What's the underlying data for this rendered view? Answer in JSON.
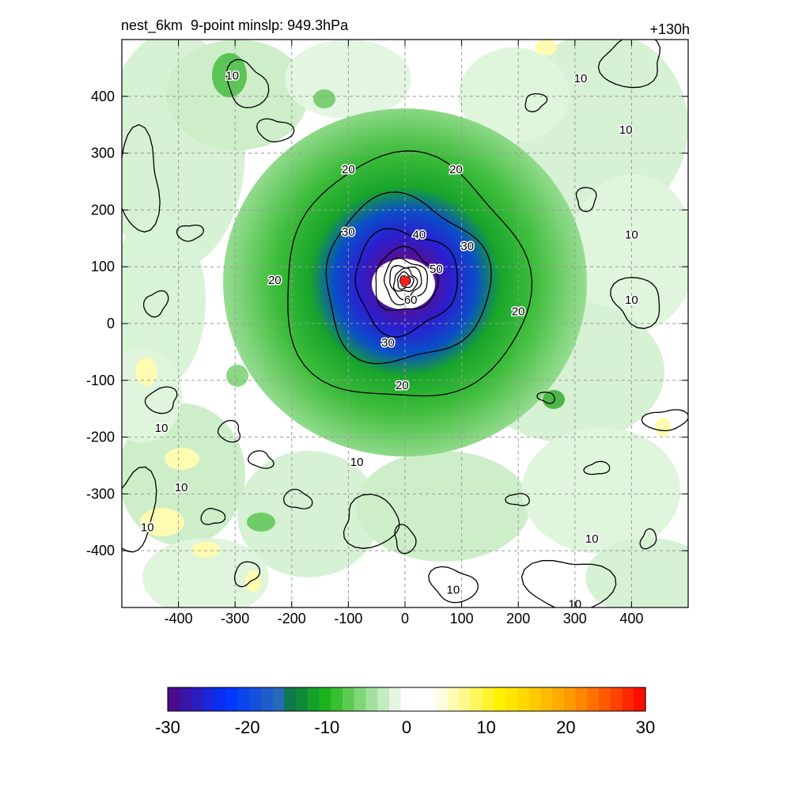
{
  "title": {
    "left": "nest_6km  9-point minslp: 949.3hPa",
    "right": "+130h"
  },
  "chart_data": {
    "type": "heatmap",
    "title": "nest_6km  9-point minslp: 949.3hPa",
    "subtitle": "+130h",
    "xlim": [
      -500,
      500
    ],
    "ylim": [
      -500,
      500
    ],
    "x_ticks": [
      -400,
      -300,
      -200,
      -100,
      0,
      100,
      200,
      300,
      400
    ],
    "y_ticks": [
      400,
      300,
      200,
      100,
      0,
      -100,
      -200,
      -300,
      -400
    ],
    "grid": true,
    "center": {
      "x": 0,
      "y": 75
    },
    "contour_levels": [
      10,
      20,
      30,
      40,
      50,
      60
    ],
    "contour_labels": [
      {
        "text": "10",
        "x": -305,
        "y": 435
      },
      {
        "text": "10",
        "x": 310,
        "y": 430
      },
      {
        "text": "10",
        "x": 390,
        "y": 340
      },
      {
        "text": "10",
        "x": 400,
        "y": 155
      },
      {
        "text": "10",
        "x": 400,
        "y": 40
      },
      {
        "text": "10",
        "x": -430,
        "y": -185
      },
      {
        "text": "10",
        "x": -395,
        "y": -290
      },
      {
        "text": "10",
        "x": -455,
        "y": -360
      },
      {
        "text": "10",
        "x": -85,
        "y": -245
      },
      {
        "text": "10",
        "x": 330,
        "y": -380
      },
      {
        "text": "10",
        "x": 85,
        "y": -470
      },
      {
        "text": "10",
        "x": 300,
        "y": -495
      },
      {
        "text": "20",
        "x": -100,
        "y": 270
      },
      {
        "text": "20",
        "x": 90,
        "y": 270
      },
      {
        "text": "20",
        "x": -230,
        "y": 75
      },
      {
        "text": "20",
        "x": 200,
        "y": 20
      },
      {
        "text": "20",
        "x": -5,
        "y": -110
      },
      {
        "text": "30",
        "x": -100,
        "y": 160
      },
      {
        "text": "30",
        "x": 110,
        "y": 135
      },
      {
        "text": "30",
        "x": -30,
        "y": -35
      },
      {
        "text": "40",
        "x": 25,
        "y": 155
      },
      {
        "text": "50",
        "x": 55,
        "y": 95
      },
      {
        "text": "60",
        "x": 10,
        "y": 40
      }
    ],
    "colorbar": {
      "min": -30,
      "max": 30,
      "tick_labels": [
        "-30",
        "-20",
        "-10",
        "0",
        "10",
        "20",
        "30"
      ],
      "colors": [
        "#4a0b8c",
        "#3a14a6",
        "#2a1dc0",
        "#1a26d9",
        "#0a2ff2",
        "#0038ff",
        "#0a44ee",
        "#1450dc",
        "#1e5ccb",
        "#2868b9",
        "#0c7a4a",
        "#108a38",
        "#14a02a",
        "#1bb21e",
        "#36c032",
        "#5ccb54",
        "#80d679",
        "#a2e19d",
        "#c3ecc1",
        "#e2f6e1",
        "#ffffff",
        "#ffffff",
        "#ffffff",
        "#fffde0",
        "#fffbb5",
        "#fff98a",
        "#fff65c",
        "#fff22e",
        "#fff000",
        "#ffe600",
        "#ffd800",
        "#ffca00",
        "#ffbb00",
        "#ffab00",
        "#ff9900",
        "#ff8600",
        "#ff7000",
        "#ff5a00",
        "#ff4200",
        "#ff2800",
        "#ff0c00"
      ]
    }
  }
}
